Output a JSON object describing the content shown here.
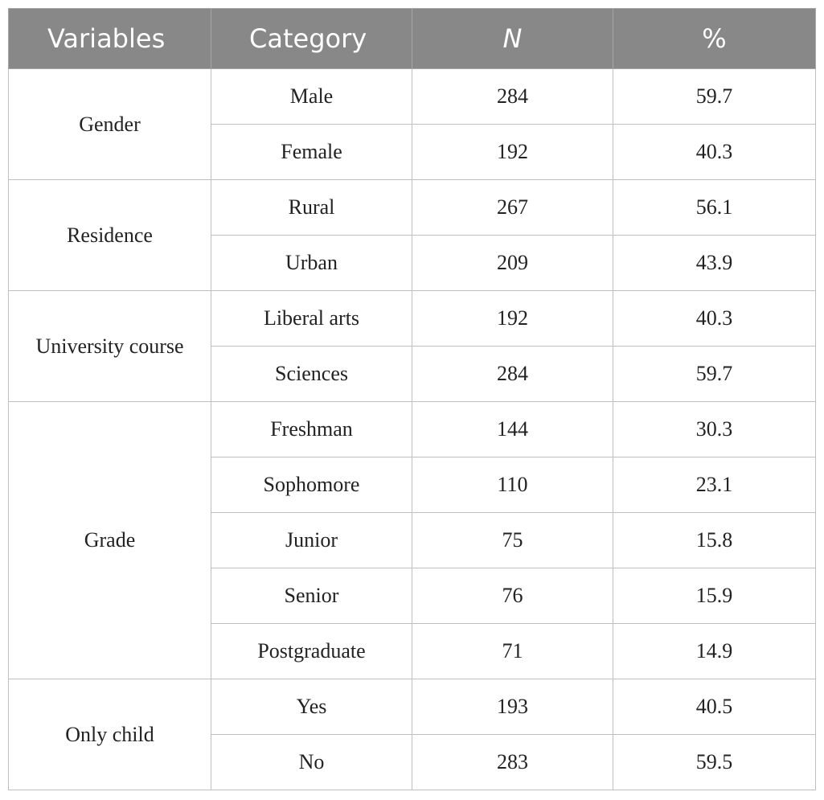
{
  "table": {
    "headers": [
      "Variables",
      "Category",
      "N",
      "%"
    ],
    "groups": [
      {
        "variable": "Gender",
        "rows": [
          {
            "category": "Male",
            "n": "284",
            "pct": "59.7"
          },
          {
            "category": "Female",
            "n": "192",
            "pct": "40.3"
          }
        ]
      },
      {
        "variable": "Residence",
        "rows": [
          {
            "category": "Rural",
            "n": "267",
            "pct": "56.1"
          },
          {
            "category": "Urban",
            "n": "209",
            "pct": "43.9"
          }
        ]
      },
      {
        "variable": "University course",
        "rows": [
          {
            "category": "Liberal arts",
            "n": "192",
            "pct": "40.3"
          },
          {
            "category": "Sciences",
            "n": "284",
            "pct": "59.7"
          }
        ]
      },
      {
        "variable": "Grade",
        "rows": [
          {
            "category": "Freshman",
            "n": "144",
            "pct": "30.3"
          },
          {
            "category": "Sophomore",
            "n": "110",
            "pct": "23.1"
          },
          {
            "category": "Junior",
            "n": "75",
            "pct": "15.8"
          },
          {
            "category": "Senior",
            "n": "76",
            "pct": "15.9"
          },
          {
            "category": "Postgraduate",
            "n": "71",
            "pct": "14.9"
          }
        ]
      },
      {
        "variable": "Only child",
        "rows": [
          {
            "category": "Yes",
            "n": "193",
            "pct": "40.5"
          },
          {
            "category": "No",
            "n": "283",
            "pct": "59.5"
          }
        ]
      }
    ]
  },
  "colors": {
    "header_bg": "#888889",
    "header_text": "#ffffff",
    "grid": "#bfbfbf"
  }
}
